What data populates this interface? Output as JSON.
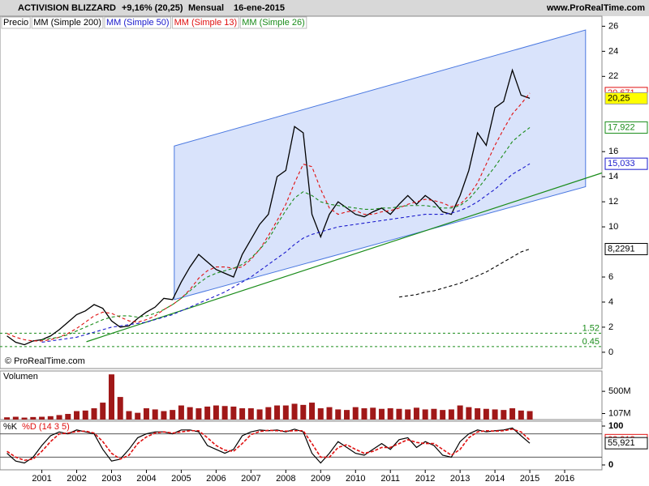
{
  "chart_data": [
    {
      "type": "line",
      "title": "ACTIVISION BLIZZARD",
      "change": "+9,16% (20,25)",
      "period": "Mensual",
      "date": "16-ene-2015",
      "source": "www.ProRealTime.com",
      "copyright": "© ProRealTime.com",
      "x": [
        2000,
        2000.25,
        2000.5,
        2000.75,
        2001,
        2001.25,
        2001.5,
        2001.75,
        2002,
        2002.25,
        2002.5,
        2002.75,
        2003,
        2003.25,
        2003.5,
        2003.75,
        2004,
        2004.25,
        2004.5,
        2004.75,
        2005,
        2005.25,
        2005.5,
        2005.75,
        2006,
        2006.25,
        2006.5,
        2006.75,
        2007,
        2007.25,
        2007.5,
        2007.75,
        2008,
        2008.25,
        2008.5,
        2008.75,
        2009,
        2009.25,
        2009.5,
        2009.75,
        2010,
        2010.25,
        2010.5,
        2010.75,
        2011,
        2011.25,
        2011.5,
        2011.75,
        2012,
        2012.25,
        2012.5,
        2012.75,
        2013,
        2013.25,
        2013.5,
        2013.75,
        2014,
        2014.25,
        2014.5,
        2014.75,
        2015
      ],
      "series": [
        {
          "name": "Precio",
          "color": "#000000",
          "values": [
            1.3,
            0.8,
            0.6,
            0.9,
            1.0,
            1.3,
            1.8,
            2.4,
            3.0,
            3.3,
            3.8,
            3.5,
            2.5,
            2.0,
            2.1,
            2.7,
            3.2,
            3.6,
            4.3,
            4.2,
            5.6,
            6.8,
            7.8,
            7.2,
            6.6,
            6.3,
            6.0,
            7.8,
            9.0,
            10.2,
            11.0,
            14.0,
            14.5,
            18.0,
            17.5,
            11.0,
            9.2,
            11.0,
            12.0,
            11.5,
            11.0,
            10.8,
            11.2,
            11.5,
            11.0,
            11.8,
            12.5,
            11.8,
            12.5,
            12.0,
            11.2,
            11.0,
            12.5,
            14.5,
            17.5,
            16.5,
            19.5,
            20.0,
            22.5,
            20.5,
            20.25
          ]
        },
        {
          "name": "MM (Simple 200)",
          "color": "#000000",
          "values": [
            null,
            null,
            null,
            null,
            null,
            null,
            null,
            null,
            null,
            null,
            null,
            null,
            null,
            null,
            null,
            null,
            null,
            null,
            null,
            null,
            null,
            null,
            null,
            null,
            null,
            null,
            null,
            null,
            null,
            null,
            null,
            null,
            null,
            null,
            null,
            null,
            null,
            null,
            null,
            null,
            null,
            null,
            null,
            null,
            null,
            4.4,
            4.5,
            4.6,
            4.8,
            4.9,
            5.1,
            5.3,
            5.5,
            5.8,
            6.1,
            6.4,
            6.8,
            7.2,
            7.6,
            8.0,
            8.2291
          ]
        },
        {
          "name": "MM (Simple 50)",
          "color": "#1a1acc",
          "values": [
            null,
            null,
            null,
            null,
            0.8,
            0.9,
            1.0,
            1.1,
            1.2,
            1.4,
            1.6,
            1.8,
            2.0,
            2.1,
            2.2,
            2.3,
            2.4,
            2.6,
            2.8,
            3.0,
            3.3,
            3.6,
            3.9,
            4.2,
            4.5,
            4.8,
            5.2,
            5.6,
            6.0,
            6.5,
            7.0,
            7.5,
            8.0,
            8.6,
            9.1,
            9.4,
            9.6,
            9.8,
            10.0,
            10.1,
            10.2,
            10.3,
            10.4,
            10.5,
            10.6,
            10.7,
            10.8,
            10.9,
            11.0,
            11.0,
            11.0,
            11.1,
            11.3,
            11.6,
            12.0,
            12.5,
            13.0,
            13.6,
            14.2,
            14.6,
            15.033
          ]
        },
        {
          "name": "MM (Simple 13)",
          "color": "#e01010",
          "values": [
            1.5,
            1.2,
            1.0,
            0.9,
            0.9,
            1.0,
            1.2,
            1.5,
            1.9,
            2.4,
            2.9,
            3.2,
            3.1,
            2.8,
            2.5,
            2.4,
            2.6,
            2.9,
            3.4,
            3.8,
            4.3,
            5.0,
            5.9,
            6.5,
            6.8,
            6.8,
            6.7,
            6.8,
            7.4,
            8.2,
            9.3,
            10.5,
            11.8,
            13.5,
            15.0,
            14.8,
            13.0,
            11.5,
            11.0,
            11.2,
            11.3,
            11.0,
            11.0,
            11.2,
            11.3,
            11.5,
            11.8,
            12.0,
            12.2,
            12.1,
            11.9,
            11.6,
            11.8,
            12.5,
            13.5,
            15.0,
            16.5,
            17.8,
            19.0,
            19.8,
            20.671
          ]
        },
        {
          "name": "MM (Simple 26)",
          "color": "#1a8c1a",
          "values": [
            null,
            null,
            null,
            null,
            1.0,
            1.1,
            1.2,
            1.4,
            1.7,
            2.0,
            2.3,
            2.6,
            2.8,
            2.9,
            2.9,
            2.8,
            2.9,
            3.1,
            3.4,
            3.8,
            4.3,
            4.9,
            5.5,
            6.0,
            6.3,
            6.5,
            6.7,
            7.0,
            7.5,
            8.2,
            9.0,
            10.2,
            11.3,
            12.3,
            12.8,
            12.5,
            12.0,
            11.8,
            11.7,
            11.6,
            11.5,
            11.4,
            11.4,
            11.5,
            11.5,
            11.6,
            11.7,
            11.7,
            11.7,
            11.6,
            11.5,
            11.5,
            11.7,
            12.2,
            13.0,
            13.9,
            14.8,
            15.8,
            16.8,
            17.4,
            17.922
          ]
        }
      ],
      "channel": {
        "x": [
          2004.8,
          2016.6
        ],
        "upper": [
          16.45,
          25.7
        ],
        "lower": [
          4.2,
          13.2
        ],
        "color": "#cfdcfa"
      },
      "trendline": {
        "x": [
          2002.28,
          2017.07
        ],
        "values": [
          0.84,
          14.3
        ],
        "color": "#1a8c1a"
      },
      "levels": [
        1.52,
        0.45
      ],
      "xlim": [
        1999.8,
        2017.07
      ],
      "xticks": [
        2001,
        2002,
        2003,
        2004,
        2005,
        2006,
        2007,
        2008,
        2009,
        2010,
        2011,
        2012,
        2013,
        2014,
        2015,
        2016
      ],
      "ylim": [
        -1.3,
        26.8
      ],
      "yticks": [
        0,
        2,
        4,
        6,
        10,
        12,
        14,
        16,
        22,
        24,
        26
      ],
      "price_labels": [
        {
          "value": 20.671,
          "label": "20,671",
          "color": "#e01010"
        },
        {
          "value": 20.25,
          "label": "20,25",
          "color": "#ffff00"
        },
        {
          "value": 17.922,
          "label": "17,922",
          "color": "#1a8c1a"
        },
        {
          "value": 15.033,
          "label": "15,033",
          "color": "#1a1acc"
        },
        {
          "value": 8.2291,
          "label": "8,2291",
          "color": "#000000"
        }
      ]
    },
    {
      "type": "bar",
      "title": "Volumen",
      "color": "#a01818",
      "values": [
        40,
        50,
        35,
        45,
        50,
        60,
        80,
        100,
        150,
        160,
        200,
        300,
        800,
        400,
        150,
        120,
        200,
        180,
        150,
        170,
        250,
        220,
        200,
        230,
        250,
        240,
        230,
        200,
        200,
        180,
        220,
        250,
        250,
        280,
        260,
        300,
        200,
        220,
        180,
        170,
        220,
        200,
        210,
        190,
        200,
        190,
        180,
        210,
        180,
        190,
        170,
        180,
        250,
        220,
        200,
        190,
        180,
        170,
        200,
        160,
        150
      ],
      "ylim": [
        0,
        860
      ],
      "yticks": [
        {
          "value": 107,
          "label": "107M"
        },
        {
          "value": 500,
          "label": "500M"
        }
      ]
    },
    {
      "type": "line",
      "series": [
        {
          "name": "%K",
          "color": "#000000",
          "values": [
            30,
            10,
            5,
            20,
            50,
            75,
            85,
            80,
            90,
            85,
            80,
            40,
            10,
            15,
            40,
            70,
            80,
            85,
            85,
            80,
            90,
            90,
            85,
            50,
            40,
            30,
            40,
            75,
            85,
            90,
            88,
            90,
            85,
            92,
            85,
            30,
            5,
            30,
            60,
            45,
            30,
            25,
            40,
            55,
            40,
            65,
            70,
            45,
            60,
            50,
            25,
            20,
            60,
            80,
            90,
            85,
            88,
            90,
            95,
            75,
            55.921
          ]
        },
        {
          "name": "%D (14 3 5)",
          "color": "#e01010",
          "values": [
            35,
            20,
            12,
            15,
            35,
            60,
            80,
            82,
            86,
            87,
            82,
            60,
            30,
            15,
            25,
            55,
            72,
            82,
            85,
            82,
            85,
            88,
            88,
            70,
            50,
            38,
            35,
            55,
            78,
            86,
            89,
            88,
            87,
            88,
            88,
            55,
            20,
            20,
            45,
            52,
            40,
            30,
            35,
            45,
            45,
            55,
            65,
            58,
            55,
            55,
            40,
            25,
            40,
            70,
            85,
            88,
            87,
            88,
            92,
            85,
            63.918
          ]
        }
      ],
      "levels": [
        20,
        80
      ],
      "ylim": [
        -12.5,
        112.5
      ],
      "yticks": [
        0,
        100
      ],
      "value_labels": [
        {
          "value": 63.918,
          "label": "63,918",
          "color": "#e01010"
        },
        {
          "value": 55.921,
          "label": "55,921",
          "color": "#000000"
        }
      ]
    }
  ]
}
